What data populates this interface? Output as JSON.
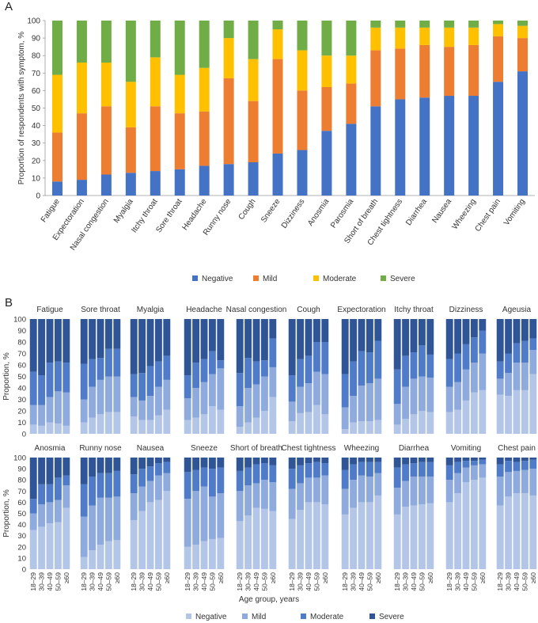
{
  "colors": {
    "A": {
      "Negative": "#4472c4",
      "Mild": "#ed7d31",
      "Moderate": "#ffc000",
      "Severe": "#70ad47"
    },
    "B": {
      "Negative": "#b4c6e7",
      "Mild": "#8faadc",
      "Moderate": "#4f7bc8",
      "Severe": "#2f5597"
    }
  },
  "chart_data": [
    {
      "panel": "A",
      "type": "bar",
      "stacked": true,
      "ylabel": "Proportion of respondents with symptom, %",
      "xlabel": "",
      "ylim": [
        0,
        100
      ],
      "yticks": [
        "0",
        "10",
        "20",
        "30",
        "40",
        "50",
        "60",
        "70",
        "80",
        "90",
        "100"
      ],
      "categories": [
        "Fatigue",
        "Expectoration",
        "Nasal congestion",
        "Myalgia",
        "Itchy throat",
        "Sore throat",
        "Headache",
        "Runny nose",
        "Cough",
        "Sneeze",
        "Dizziness",
        "Anosmia",
        "Parosmia",
        "Short of breath",
        "Chest tightness",
        "Diarrhea",
        "Nausea",
        "Wheezing",
        "Chest pain",
        "Vomiting"
      ],
      "series": [
        {
          "name": "Negative",
          "values": [
            8,
            9,
            12,
            13,
            14,
            15,
            17,
            18,
            19,
            24,
            26,
            37,
            41,
            51,
            55,
            56,
            57,
            57,
            65,
            71
          ]
        },
        {
          "name": "Mild",
          "values": [
            28,
            38,
            39,
            26,
            37,
            32,
            31,
            49,
            35,
            54,
            34,
            25,
            23,
            32,
            29,
            30,
            28,
            29,
            26,
            19
          ]
        },
        {
          "name": "Moderate",
          "values": [
            33,
            29,
            25,
            26,
            28,
            22,
            25,
            23,
            24,
            17,
            23,
            18,
            16,
            13,
            12,
            10,
            11,
            10,
            7,
            7
          ]
        },
        {
          "name": "Severe",
          "values": [
            31,
            24,
            24,
            35,
            21,
            31,
            27,
            10,
            22,
            5,
            17,
            20,
            20,
            4,
            4,
            4,
            4,
            4,
            2,
            3
          ]
        }
      ],
      "legend": [
        "Negative",
        "Mild",
        "Moderate",
        "Severe"
      ],
      "legend_position": "bottom"
    },
    {
      "panel": "B",
      "type": "bar",
      "stacked": true,
      "small_multiples": true,
      "ylabel": "Proportion, %",
      "xlabel": "Age group, years",
      "ylim": [
        0,
        100
      ],
      "yticks": [
        "0",
        "10",
        "20",
        "30",
        "40",
        "50",
        "60",
        "70",
        "80",
        "90",
        "100"
      ],
      "categories": [
        "18–29",
        "30–39",
        "40–49",
        "50–59",
        "≥60"
      ],
      "series_names": [
        "Negative",
        "Mild",
        "Moderate",
        "Severe"
      ],
      "legend": [
        "Negative",
        "Mild",
        "Moderate",
        "Severe"
      ],
      "legend_position": "bottom",
      "panels": [
        {
          "title": "Fatigue",
          "neg": [
            8,
            7,
            10,
            9,
            7
          ],
          "mild": [
            17,
            18,
            22,
            28,
            29
          ],
          "mod": [
            29,
            26,
            30,
            26,
            26
          ]
        },
        {
          "title": "Sore throat",
          "neg": [
            10,
            14,
            17,
            19,
            19
          ],
          "mild": [
            20,
            27,
            30,
            31,
            31
          ],
          "mod": [
            31,
            24,
            19,
            24,
            24
          ]
        },
        {
          "title": "Myalgia",
          "neg": [
            15,
            12,
            12,
            16,
            21
          ],
          "mild": [
            17,
            17,
            21,
            25,
            26
          ],
          "mod": [
            20,
            24,
            26,
            22,
            21
          ]
        },
        {
          "title": "Headache",
          "neg": [
            12,
            14,
            17,
            24,
            21
          ],
          "mild": [
            19,
            26,
            28,
            28,
            36
          ],
          "mod": [
            20,
            22,
            20,
            20,
            7
          ]
        },
        {
          "title": "Nasal congestion",
          "neg": [
            6,
            10,
            14,
            20,
            32
          ],
          "mild": [
            18,
            30,
            29,
            30,
            26
          ],
          "mod": [
            29,
            26,
            20,
            14,
            25
          ]
        },
        {
          "title": "Cough",
          "neg": [
            11,
            18,
            19,
            25,
            17
          ],
          "mild": [
            17,
            23,
            25,
            29,
            35
          ],
          "mod": [
            23,
            24,
            24,
            26,
            28
          ]
        },
        {
          "title": "Expectoration",
          "neg": [
            4,
            10,
            11,
            11,
            12
          ],
          "mild": [
            19,
            23,
            31,
            33,
            36
          ],
          "mod": [
            29,
            30,
            30,
            27,
            33
          ]
        },
        {
          "title": "Itchy throat",
          "neg": [
            8,
            13,
            17,
            20,
            19
          ],
          "mild": [
            18,
            28,
            31,
            30,
            30
          ],
          "mod": [
            30,
            27,
            23,
            27,
            20
          ]
        },
        {
          "title": "Dizziness",
          "neg": [
            19,
            21,
            29,
            36,
            38
          ],
          "mild": [
            22,
            24,
            27,
            26,
            32
          ],
          "mod": [
            24,
            25,
            22,
            22,
            20
          ]
        },
        {
          "title": "Ageusia",
          "neg": [
            34,
            33,
            38,
            38,
            52
          ],
          "mild": [
            14,
            20,
            24,
            24,
            21
          ],
          "mod": [
            15,
            17,
            17,
            19,
            10
          ]
        },
        {
          "title": "Anosmia",
          "neg": [
            35,
            38,
            41,
            42,
            55
          ],
          "mild": [
            15,
            20,
            19,
            20,
            20
          ],
          "mod": [
            13,
            18,
            16,
            20,
            9
          ]
        },
        {
          "title": "Runny nose",
          "neg": [
            11,
            17,
            22,
            25,
            26
          ],
          "mild": [
            36,
            40,
            42,
            39,
            39
          ],
          "mod": [
            29,
            26,
            22,
            22,
            23
          ]
        },
        {
          "title": "Nausea",
          "neg": [
            44,
            52,
            60,
            62,
            70
          ],
          "mild": [
            24,
            22,
            19,
            22,
            16
          ],
          "mod": [
            17,
            16,
            13,
            11,
            10
          ]
        },
        {
          "title": "Sneeze",
          "neg": [
            20,
            22,
            25,
            27,
            28
          ],
          "mild": [
            43,
            48,
            49,
            38,
            40
          ],
          "mod": [
            24,
            19,
            17,
            25,
            23
          ]
        },
        {
          "title": "Short of breath",
          "neg": [
            43,
            48,
            55,
            54,
            52
          ],
          "mild": [
            27,
            27,
            22,
            26,
            26
          ],
          "mod": [
            18,
            16,
            17,
            15,
            15
          ]
        },
        {
          "title": "Chest tightness",
          "neg": [
            45,
            53,
            60,
            60,
            58
          ],
          "mild": [
            27,
            24,
            22,
            22,
            26
          ],
          "mod": [
            18,
            16,
            13,
            14,
            11
          ]
        },
        {
          "title": "Wheezing",
          "neg": [
            49,
            55,
            60,
            60,
            66
          ],
          "mild": [
            23,
            25,
            24,
            23,
            20
          ],
          "mod": [
            17,
            14,
            12,
            13,
            10
          ]
        },
        {
          "title": "Diarrhea",
          "neg": [
            49,
            56,
            57,
            58,
            59
          ],
          "mild": [
            24,
            23,
            26,
            25,
            24
          ],
          "mod": [
            18,
            15,
            12,
            13,
            13
          ]
        },
        {
          "title": "Vomiting",
          "neg": [
            60,
            68,
            78,
            80,
            82
          ],
          "mild": [
            20,
            18,
            13,
            13,
            12
          ],
          "mod": [
            13,
            10,
            6,
            4,
            4
          ]
        },
        {
          "title": "Chest pain",
          "neg": [
            57,
            65,
            68,
            68,
            66
          ],
          "mild": [
            26,
            22,
            20,
            21,
            24
          ],
          "mod": [
            11,
            10,
            8,
            8,
            8
          ]
        }
      ]
    }
  ],
  "panel_labels": {
    "a": "A",
    "b": "B"
  }
}
